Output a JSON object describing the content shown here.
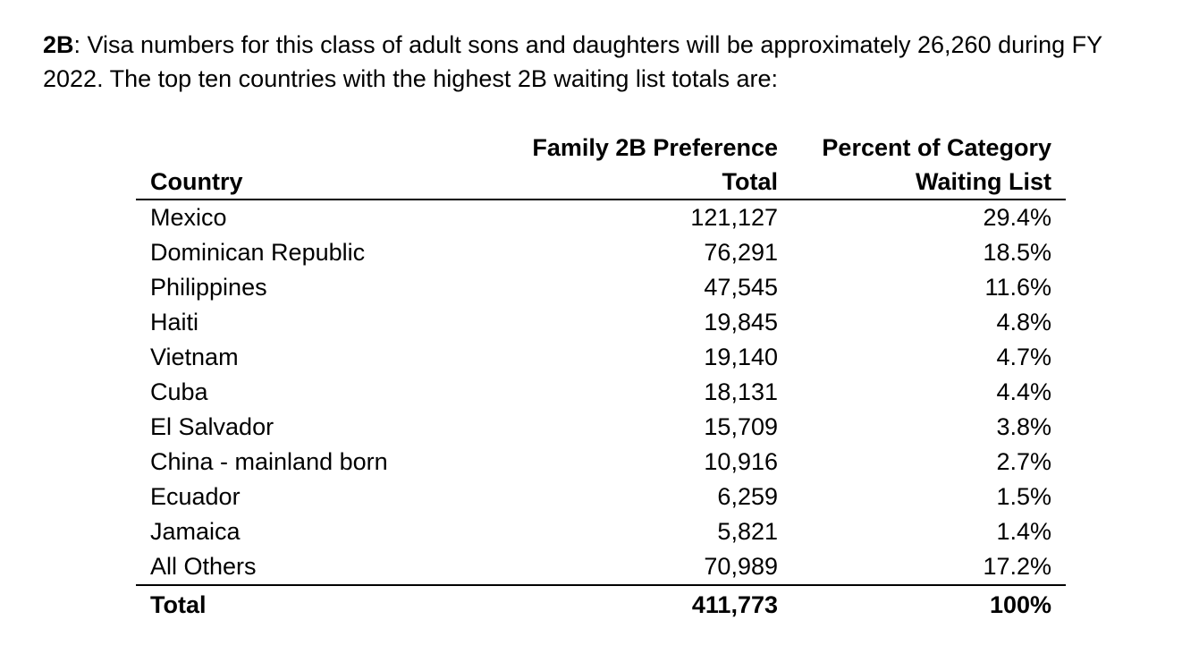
{
  "intro": {
    "label": "2B",
    "text": ": Visa numbers for this class of adult sons and daughters will be approximately 26,260 during FY 2022. The top ten countries with the highest 2B waiting list totals are:"
  },
  "table": {
    "headers": {
      "country": "Country",
      "total_line1": "Family 2B Preference",
      "total_line2": "Total",
      "pct_line1": "Percent of Category",
      "pct_line2": "Waiting List"
    },
    "rows": [
      {
        "country": "Mexico",
        "total": "121,127",
        "pct": "29.4%"
      },
      {
        "country": "Dominican Republic",
        "total": "76,291",
        "pct": "18.5%"
      },
      {
        "country": "Philippines",
        "total": "47,545",
        "pct": "11.6%"
      },
      {
        "country": "Haiti",
        "total": "19,845",
        "pct": "4.8%"
      },
      {
        "country": "Vietnam",
        "total": "19,140",
        "pct": "4.7%"
      },
      {
        "country": "Cuba",
        "total": "18,131",
        "pct": "4.4%"
      },
      {
        "country": "El Salvador",
        "total": "15,709",
        "pct": "3.8%"
      },
      {
        "country": "China - mainland born",
        "total": "10,916",
        "pct": "2.7%"
      },
      {
        "country": "Ecuador",
        "total": "6,259",
        "pct": "1.5%"
      },
      {
        "country": "Jamaica",
        "total": "5,821",
        "pct": "1.4%"
      },
      {
        "country": "All Others",
        "total": "70,989",
        "pct": "17.2%"
      }
    ],
    "footer": {
      "country": "Total",
      "total": "411,773",
      "pct": "100%"
    }
  }
}
